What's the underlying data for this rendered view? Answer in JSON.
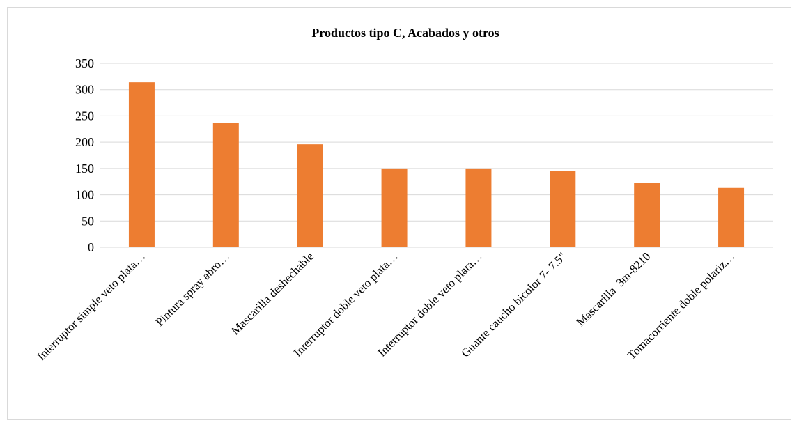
{
  "chart_data": {
    "type": "bar",
    "title": "Productos tipo C, Acabados y otros",
    "categories": [
      "Interruptor simple veto plata…",
      "Pintura spray abro…",
      "Mascarilla deshechable",
      "Interruptor doble veto plata…",
      "Interruptor doble veto plata…",
      "Guante caucho bicolor 7- 7.5\"",
      "Mascarilla  3m-8210",
      "Tomacorriente doble polariz…"
    ],
    "values": [
      314,
      237,
      196,
      150,
      150,
      145,
      122,
      113
    ],
    "ylim": [
      0,
      350
    ],
    "yticks": [
      0,
      50,
      100,
      150,
      200,
      250,
      300,
      350
    ],
    "grid": true,
    "legend": "none",
    "bar_color": "#ED7D31",
    "grid_color": "#d9d9d9"
  }
}
